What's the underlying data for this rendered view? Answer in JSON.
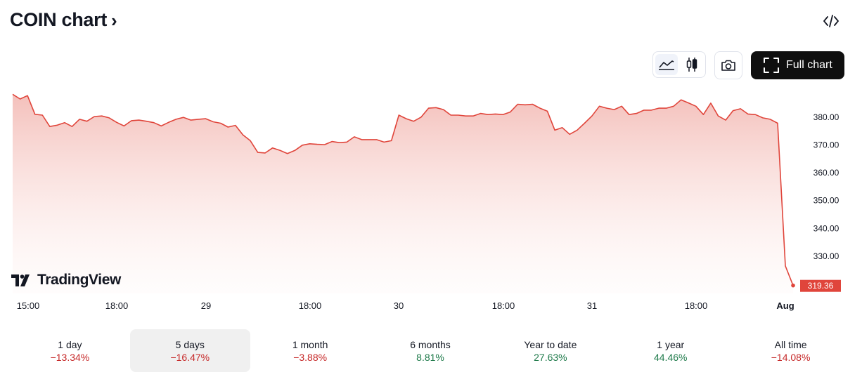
{
  "header": {
    "title": "COIN chart",
    "chevron": "›",
    "embed_icon": "code-icon"
  },
  "toolbar": {
    "line_icon": "area-chart-icon",
    "candle_icon": "candlestick-icon",
    "camera_icon": "camera-icon",
    "full_chart_label": "Full chart",
    "full_chart_icon": "expand-icon"
  },
  "brand": {
    "name": "TradingView"
  },
  "colors": {
    "line": "#e0453b",
    "fill_top": "#f4c0bb",
    "price_label_bg": "#e0453b",
    "negative": "#c62828",
    "positive": "#1e7a4a"
  },
  "chart_data": {
    "type": "area",
    "x_tick_labels": [
      "15:00",
      "18:00",
      "29",
      "18:00",
      "30",
      "18:00",
      "31",
      "18:00",
      "Aug"
    ],
    "y_tick_labels": [
      "380.00",
      "370.00",
      "360.00",
      "350.00",
      "340.00",
      "330.00"
    ],
    "y_ticks": [
      380,
      370,
      360,
      350,
      340,
      330
    ],
    "ylim": [
      316.5,
      391.7
    ],
    "last_price_label": "319.36",
    "last_price": 319.36,
    "values": [
      388.1,
      386.4,
      387.6,
      380.9,
      380.6,
      376.5,
      377.0,
      377.9,
      376.5,
      379.1,
      378.4,
      380.1,
      380.3,
      379.6,
      378.0,
      376.7,
      378.6,
      378.8,
      378.4,
      377.9,
      376.7,
      378.0,
      379.1,
      379.8,
      378.8,
      379.1,
      379.3,
      378.2,
      377.7,
      376.3,
      376.9,
      373.5,
      371.4,
      367.2,
      367.0,
      368.8,
      367.9,
      366.8,
      367.9,
      369.8,
      370.3,
      370.1,
      370.0,
      371.1,
      370.7,
      370.9,
      372.8,
      371.8,
      371.8,
      371.8,
      370.9,
      371.4,
      380.6,
      379.3,
      378.4,
      379.9,
      383.1,
      383.3,
      382.6,
      380.6,
      380.6,
      380.3,
      380.3,
      381.2,
      380.8,
      381.0,
      380.8,
      381.7,
      384.5,
      384.3,
      384.5,
      383.1,
      382.0,
      375.2,
      376.1,
      373.7,
      375.2,
      377.7,
      380.3,
      383.8,
      383.1,
      382.6,
      383.8,
      380.8,
      381.2,
      382.4,
      382.4,
      383.1,
      383.1,
      383.8,
      386.1,
      385.0,
      383.8,
      380.8,
      384.9,
      380.3,
      378.8,
      382.2,
      382.9,
      381.0,
      380.8,
      379.6,
      379.1,
      377.7,
      326.4,
      319.36
    ]
  },
  "periods": [
    {
      "label": "1 day",
      "change": "−13.34%",
      "sign": "neg"
    },
    {
      "label": "5 days",
      "change": "−16.47%",
      "sign": "neg",
      "active": true
    },
    {
      "label": "1 month",
      "change": "−3.88%",
      "sign": "neg"
    },
    {
      "label": "6 months",
      "change": "8.81%",
      "sign": "pos"
    },
    {
      "label": "Year to date",
      "change": "27.63%",
      "sign": "pos"
    },
    {
      "label": "1 year",
      "change": "44.46%",
      "sign": "pos"
    },
    {
      "label": "All time",
      "change": "−14.08%",
      "sign": "neg"
    }
  ]
}
